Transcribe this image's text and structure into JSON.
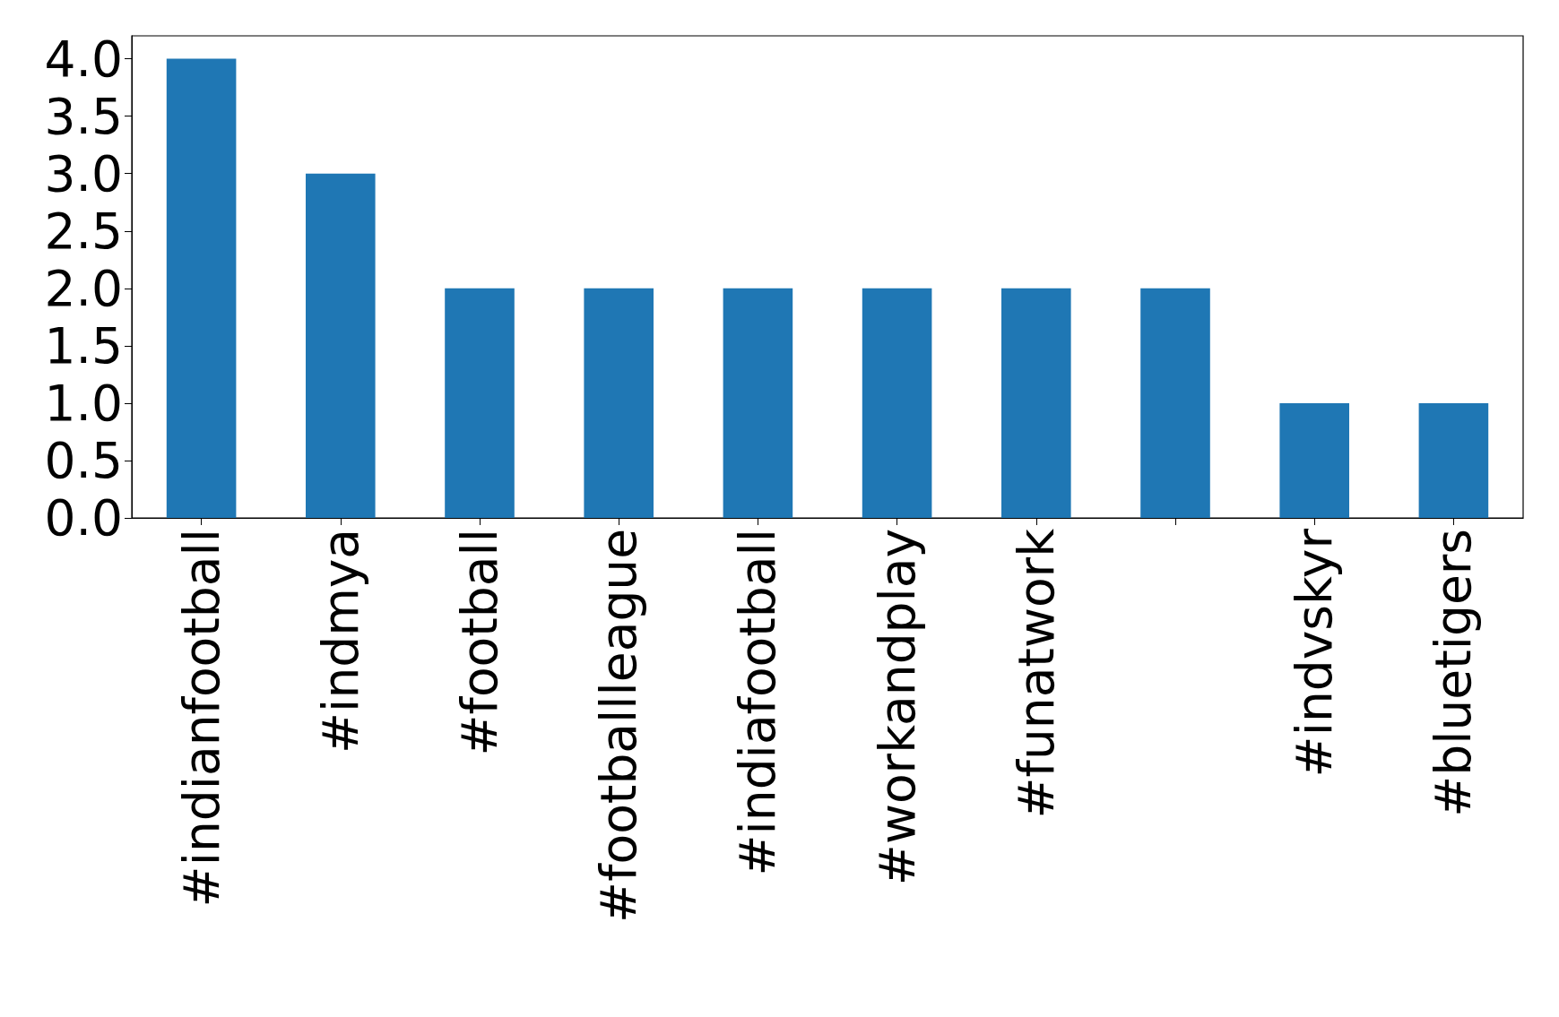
{
  "chart_data": {
    "type": "bar",
    "categories": [
      "#indianfootball",
      "#indmya",
      "#football",
      "#footballleague",
      "#indiafootball",
      "#workandplay",
      "#funatwork",
      null,
      "#indvskyr",
      "#bluetigers"
    ],
    "values": [
      4,
      3,
      2,
      2,
      2,
      2,
      2,
      2,
      1,
      1
    ],
    "color": "#1f77b4",
    "ylim": [
      0,
      4.2
    ],
    "yticks": [
      {
        "value": 0,
        "label": "0.0"
      },
      {
        "value": 0.5,
        "label": "0.5"
      },
      {
        "value": 1,
        "label": "1.0"
      },
      {
        "value": 1.5,
        "label": "1.5"
      },
      {
        "value": 2,
        "label": "2.0"
      },
      {
        "value": 2.5,
        "label": "2.5"
      },
      {
        "value": 3,
        "label": "3.0"
      },
      {
        "value": 3.5,
        "label": "3.5"
      },
      {
        "value": 4,
        "label": "4.0"
      }
    ],
    "grid": false
  }
}
